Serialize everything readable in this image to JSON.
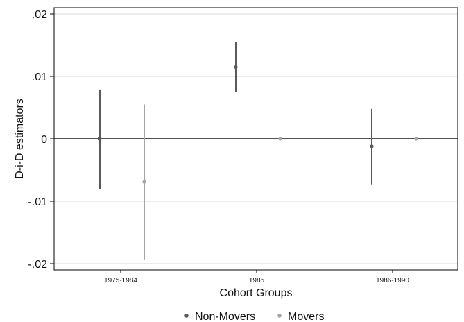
{
  "chart_data": {
    "type": "scatter",
    "title": "",
    "xlabel": "Cohort Groups",
    "ylabel": "D-i-D estimators",
    "categories": [
      "1975-1984",
      "1985",
      "1986-1990"
    ],
    "ylim": [
      -0.021,
      0.021
    ],
    "yticks": [
      0.02,
      0.01,
      0,
      -0.01,
      -0.02
    ],
    "ytick_labels": [
      ".02",
      ".01",
      "0",
      "-.01",
      "-.02"
    ],
    "grid": true,
    "reference_line": 0,
    "legend_position": "bottom",
    "series": [
      {
        "name": "Non-Movers",
        "color": "#595959",
        "points": [
          {
            "category": "1975-1984",
            "y": 0.0,
            "ci_low": -0.008,
            "ci_high": 0.0079
          },
          {
            "category": "1985",
            "y": 0.0115,
            "ci_low": 0.0075,
            "ci_high": 0.0155
          },
          {
            "category": "1986-1990",
            "y": -0.0012,
            "ci_low": -0.0073,
            "ci_high": 0.0048
          }
        ]
      },
      {
        "name": "Movers",
        "color": "#a6a6a6",
        "points": [
          {
            "category": "1975-1984",
            "y": -0.0069,
            "ci_low": -0.0193,
            "ci_high": 0.0055
          },
          {
            "category": "1985",
            "y": 0.0,
            "ci_low": 0.0,
            "ci_high": 0.0
          },
          {
            "category": "1986-1990",
            "y": 0.0,
            "ci_low": 0.0,
            "ci_high": 0.0
          }
        ]
      }
    ]
  }
}
